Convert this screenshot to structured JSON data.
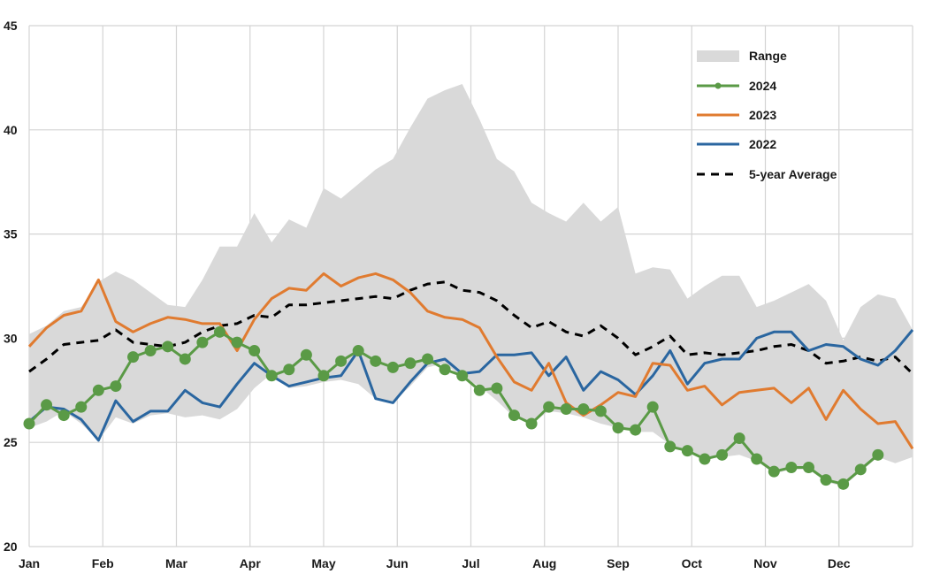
{
  "chart_data": {
    "type": "line",
    "title": "",
    "xlabel": "",
    "ylabel": "",
    "ylim": [
      20,
      45
    ],
    "yticks": [
      "20",
      "25",
      "30",
      "35",
      "40",
      "45"
    ],
    "months": [
      "Jan",
      "Feb",
      "Mar",
      "Apr",
      "May",
      "Jun",
      "Jul",
      "Aug",
      "Sep",
      "Oct",
      "Nov",
      "Dec"
    ],
    "grid": true,
    "legend_position": "top-right",
    "week": [
      1,
      2,
      3,
      4,
      5,
      6,
      7,
      8,
      9,
      10,
      11,
      12,
      13,
      14,
      15,
      16,
      17,
      18,
      19,
      20,
      21,
      22,
      23,
      24,
      25,
      26,
      27,
      28,
      29,
      30,
      31,
      32,
      33,
      34,
      35,
      36,
      37,
      38,
      39,
      40,
      41,
      42,
      43,
      44,
      45,
      46,
      47,
      48,
      49,
      50,
      51,
      52
    ],
    "range": {
      "name": "Range",
      "color": "#d9d9d9",
      "upper": [
        30.2,
        30.6,
        31.3,
        31.5,
        32.7,
        33.2,
        32.8,
        32.2,
        31.6,
        31.5,
        32.8,
        34.4,
        34.4,
        36.0,
        34.6,
        35.7,
        35.3,
        37.2,
        36.7,
        37.4,
        38.1,
        38.6,
        40.1,
        41.5,
        41.9,
        42.2,
        40.5,
        38.6,
        38.0,
        36.5,
        36.0,
        35.6,
        36.5,
        35.6,
        36.3,
        33.1,
        33.4,
        33.3,
        31.9,
        32.5,
        33.0,
        33.0,
        31.5,
        31.8,
        32.2,
        32.6,
        31.8,
        29.9,
        31.5,
        32.1,
        31.9,
        30.4
      ],
      "lower": [
        25.7,
        26.0,
        26.5,
        25.9,
        25.1,
        26.2,
        25.9,
        26.3,
        26.4,
        26.2,
        26.3,
        26.1,
        26.6,
        27.6,
        28.3,
        27.6,
        27.7,
        27.9,
        28.0,
        27.8,
        27.1,
        26.9,
        27.7,
        28.6,
        28.8,
        28.1,
        27.7,
        27.0,
        26.2,
        25.9,
        26.5,
        26.4,
        26.2,
        25.9,
        25.7,
        25.5,
        25.5,
        24.9,
        24.6,
        24.2,
        24.3,
        24.4,
        24.1,
        23.5,
        23.7,
        23.7,
        23.1,
        22.9,
        23.6,
        24.3,
        24.0,
        24.3
      ]
    },
    "series": [
      {
        "name": "2024",
        "color": "#5a9a46",
        "markers": true,
        "values": [
          25.9,
          26.8,
          26.3,
          26.7,
          27.5,
          27.7,
          29.1,
          29.4,
          29.6,
          29.0,
          29.8,
          30.3,
          29.8,
          29.4,
          28.2,
          28.5,
          29.2,
          28.2,
          28.9,
          29.4,
          28.9,
          28.6,
          28.8,
          29.0,
          28.5,
          28.2,
          27.5,
          27.6,
          26.3,
          25.9,
          26.7,
          26.6,
          26.6,
          26.5,
          25.7,
          25.6,
          26.7,
          24.8,
          24.6,
          24.2,
          24.4,
          25.2,
          24.2,
          23.6,
          23.8,
          23.8,
          23.2,
          23.0,
          23.7,
          24.4
        ]
      },
      {
        "name": "2023",
        "color": "#e07b30",
        "markers": false,
        "values": [
          29.6,
          30.5,
          31.1,
          31.3,
          32.8,
          30.8,
          30.3,
          30.7,
          31.0,
          30.9,
          30.7,
          30.7,
          29.4,
          30.9,
          31.9,
          32.4,
          32.3,
          33.1,
          32.5,
          32.9,
          33.1,
          32.8,
          32.2,
          31.3,
          31.0,
          30.9,
          30.5,
          29.1,
          27.9,
          27.5,
          28.8,
          26.9,
          26.3,
          26.8,
          27.4,
          27.2,
          28.8,
          28.7,
          27.5,
          27.7,
          26.8,
          27.4,
          27.5,
          27.6,
          26.9,
          27.6,
          26.1,
          27.5,
          26.6,
          25.9,
          26.0,
          24.7
        ]
      },
      {
        "name": "2022",
        "color": "#2a66a0",
        "markers": false,
        "values": [
          26.0,
          26.7,
          26.6,
          26.1,
          25.1,
          27.0,
          26.0,
          26.5,
          26.5,
          27.5,
          26.9,
          26.7,
          27.8,
          28.8,
          28.2,
          27.7,
          27.9,
          28.1,
          28.2,
          29.4,
          27.1,
          26.9,
          27.9,
          28.8,
          29.0,
          28.3,
          28.4,
          29.2,
          29.2,
          29.3,
          28.2,
          29.1,
          27.5,
          28.4,
          28.0,
          27.3,
          28.2,
          29.4,
          27.8,
          28.8,
          29.0,
          29.0,
          30.0,
          30.3,
          30.3,
          29.4,
          29.7,
          29.6,
          29.0,
          28.7,
          29.4,
          30.4
        ]
      },
      {
        "name": "5-year Average",
        "color": "#000000",
        "dashed": true,
        "markers": false,
        "values": [
          28.4,
          29.0,
          29.7,
          29.8,
          29.9,
          30.4,
          29.8,
          29.7,
          29.6,
          29.8,
          30.3,
          30.6,
          30.7,
          31.1,
          31.0,
          31.6,
          31.6,
          31.7,
          31.8,
          31.9,
          32.0,
          31.9,
          32.3,
          32.6,
          32.7,
          32.3,
          32.2,
          31.8,
          31.1,
          30.5,
          30.8,
          30.3,
          30.1,
          30.6,
          30.0,
          29.2,
          29.6,
          30.1,
          29.2,
          29.3,
          29.2,
          29.3,
          29.4,
          29.6,
          29.7,
          29.4,
          28.8,
          28.9,
          29.1,
          28.9,
          29.1,
          28.3
        ]
      }
    ]
  }
}
